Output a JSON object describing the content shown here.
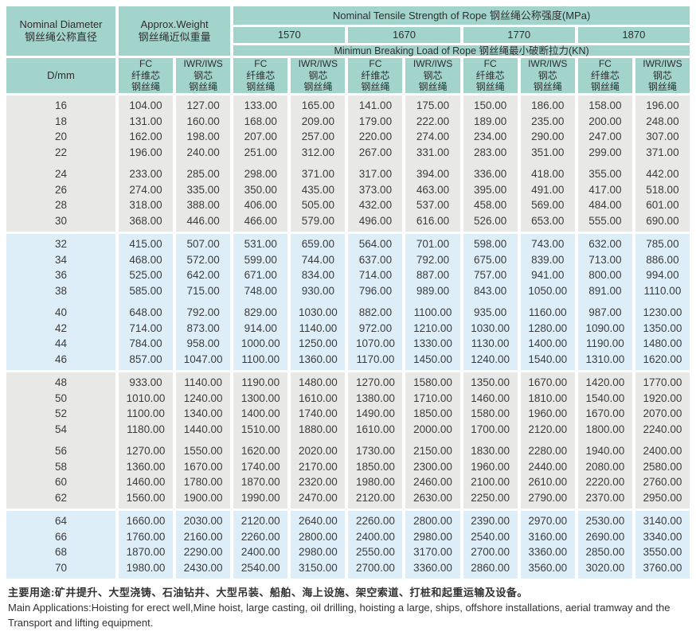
{
  "header": {
    "diameter_label": "Nominal Diameter\n钢丝绳公称直径",
    "weight_label": "Approx.Weight\n钢丝绳近似重量",
    "tensile_title": "Nominal Tensile Strength of Rope  钢丝绳公称强度(MPa)",
    "strengths": [
      "1570",
      "1670",
      "1770",
      "1870"
    ],
    "breaking_title": "Minimun Breaking Load of Rope  钢丝绳最小破断拉力(KN)",
    "d_mm": "D/mm",
    "fc_label": "FC\n纤维芯\n钢丝绳",
    "iwr_label": "IWR/IWS\n钢芯\n钢丝绳"
  },
  "colors": {
    "header_bg": "#a3d4cb",
    "band_gray": "#e8e8e7",
    "band_blue": "#ddeef8",
    "text": "#3a3a3a"
  },
  "table": {
    "bands": [
      {
        "bg": "gray",
        "groups": [
          [
            {
              "d": "16",
              "v": [
                "104.00",
                "127.00",
                "133.00",
                "165.00",
                "141.00",
                "175.00",
                "150.00",
                "186.00",
                "158.00",
                "196.00"
              ]
            },
            {
              "d": "18",
              "v": [
                "131.00",
                "160.00",
                "168.00",
                "209.00",
                "179.00",
                "222.00",
                "189.00",
                "235.00",
                "200.00",
                "248.00"
              ]
            },
            {
              "d": "20",
              "v": [
                "162.00",
                "198.00",
                "207.00",
                "257.00",
                "220.00",
                "274.00",
                "234.00",
                "290.00",
                "247.00",
                "307.00"
              ]
            },
            {
              "d": "22",
              "v": [
                "196.00",
                "240.00",
                "251.00",
                "312.00",
                "267.00",
                "331.00",
                "283.00",
                "351.00",
                "299.00",
                "371.00"
              ]
            }
          ],
          [
            {
              "d": "24",
              "v": [
                "233.00",
                "285.00",
                "298.00",
                "371.00",
                "317.00",
                "394.00",
                "336.00",
                "418.00",
                "355.00",
                "442.00"
              ]
            },
            {
              "d": "26",
              "v": [
                "274.00",
                "335.00",
                "350.00",
                "435.00",
                "373.00",
                "463.00",
                "395.00",
                "491.00",
                "417.00",
                "518.00"
              ]
            },
            {
              "d": "28",
              "v": [
                "318.00",
                "388.00",
                "406.00",
                "505.00",
                "432.00",
                "537.00",
                "458.00",
                "569.00",
                "484.00",
                "601.00"
              ]
            },
            {
              "d": "30",
              "v": [
                "368.00",
                "446.00",
                "466.00",
                "579.00",
                "496.00",
                "616.00",
                "526.00",
                "653.00",
                "555.00",
                "690.00"
              ]
            }
          ]
        ]
      },
      {
        "bg": "blue",
        "groups": [
          [
            {
              "d": "32",
              "v": [
                "415.00",
                "507.00",
                "531.00",
                "659.00",
                "564.00",
                "701.00",
                "598.00",
                "743.00",
                "632.00",
                "785.00"
              ]
            },
            {
              "d": "34",
              "v": [
                "468.00",
                "572.00",
                "599.00",
                "744.00",
                "637.00",
                "792.00",
                "675.00",
                "839.00",
                "713.00",
                "886.00"
              ]
            },
            {
              "d": "36",
              "v": [
                "525.00",
                "642.00",
                "671.00",
                "834.00",
                "714.00",
                "887.00",
                "757.00",
                "941.00",
                "800.00",
                "994.00"
              ]
            },
            {
              "d": "38",
              "v": [
                "585.00",
                "715.00",
                "748.00",
                "930.00",
                "796.00",
                "989.00",
                "843.00",
                "1050.00",
                "891.00",
                "1110.00"
              ]
            }
          ],
          [
            {
              "d": "40",
              "v": [
                "648.00",
                "792.00",
                "829.00",
                "1030.00",
                "882.00",
                "1100.00",
                "935.00",
                "1160.00",
                "987.00",
                "1230.00"
              ]
            },
            {
              "d": "42",
              "v": [
                "714.00",
                "873.00",
                "914.00",
                "1140.00",
                "972.00",
                "1210.00",
                "1030.00",
                "1280.00",
                "1090.00",
                "1350.00"
              ]
            },
            {
              "d": "44",
              "v": [
                "784.00",
                "958.00",
                "1000.00",
                "1250.00",
                "1070.00",
                "1330.00",
                "1130.00",
                "1400.00",
                "1190.00",
                "1480.00"
              ]
            },
            {
              "d": "46",
              "v": [
                "857.00",
                "1047.00",
                "1100.00",
                "1360.00",
                "1170.00",
                "1450.00",
                "1240.00",
                "1540.00",
                "1310.00",
                "1620.00"
              ]
            }
          ]
        ]
      },
      {
        "bg": "gray",
        "groups": [
          [
            {
              "d": "48",
              "v": [
                "933.00",
                "1140.00",
                "1190.00",
                "1480.00",
                "1270.00",
                "1580.00",
                "1350.00",
                "1670.00",
                "1420.00",
                "1770.00"
              ]
            },
            {
              "d": "50",
              "v": [
                "1010.00",
                "1240.00",
                "1300.00",
                "1610.00",
                "1380.00",
                "1710.00",
                "1460.00",
                "1810.00",
                "1540.00",
                "1920.00"
              ]
            },
            {
              "d": "52",
              "v": [
                "1100.00",
                "1340.00",
                "1400.00",
                "1740.00",
                "1490.00",
                "1850.00",
                "1580.00",
                "1960.00",
                "1670.00",
                "2070.00"
              ]
            },
            {
              "d": "54",
              "v": [
                "1180.00",
                "1440.00",
                "1510.00",
                "1880.00",
                "1610.00",
                "2000.00",
                "1700.00",
                "2120.00",
                "1800.00",
                "2240.00"
              ]
            }
          ],
          [
            {
              "d": "56",
              "v": [
                "1270.00",
                "1550.00",
                "1620.00",
                "2020.00",
                "1730.00",
                "2150.00",
                "1830.00",
                "2280.00",
                "1940.00",
                "2400.00"
              ]
            },
            {
              "d": "58",
              "v": [
                "1360.00",
                "1670.00",
                "1740.00",
                "2170.00",
                "1850.00",
                "2300.00",
                "1960.00",
                "2440.00",
                "2080.00",
                "2580.00"
              ]
            },
            {
              "d": "60",
              "v": [
                "1460.00",
                "1780.00",
                "1870.00",
                "2320.00",
                "1980.00",
                "2460.00",
                "2100.00",
                "2610.00",
                "2220.00",
                "2760.00"
              ]
            },
            {
              "d": "62",
              "v": [
                "1560.00",
                "1900.00",
                "1990.00",
                "2470.00",
                "2120.00",
                "2630.00",
                "2250.00",
                "2790.00",
                "2370.00",
                "2950.00"
              ]
            }
          ]
        ]
      },
      {
        "bg": "blue",
        "groups": [
          [
            {
              "d": "64",
              "v": [
                "1660.00",
                "2030.00",
                "2120.00",
                "2640.00",
                "2260.00",
                "2800.00",
                "2390.00",
                "2970.00",
                "2530.00",
                "3140.00"
              ]
            },
            {
              "d": "66",
              "v": [
                "1760.00",
                "2160.00",
                "2260.00",
                "2800.00",
                "2400.00",
                "2980.00",
                "2540.00",
                "3160.00",
                "2690.00",
                "3340.00"
              ]
            },
            {
              "d": "68",
              "v": [
                "1870.00",
                "2290.00",
                "2400.00",
                "2980.00",
                "2550.00",
                "3170.00",
                "2700.00",
                "3360.00",
                "2850.00",
                "3550.00"
              ]
            },
            {
              "d": "70",
              "v": [
                "1980.00",
                "2430.00",
                "2540.00",
                "3150.00",
                "2700.00",
                "3360.00",
                "2860.00",
                "3560.00",
                "3020.00",
                "3760.00"
              ]
            }
          ]
        ]
      }
    ]
  },
  "footer": {
    "line_cn": "主要用途:矿井提升、大型浇铸、石油钻井、大型吊装、船舶、海上设施、架空索道、打桩和起重运输及设备。",
    "line_en": "Main Applications:Hoisting for erect well,Mine hoist, large casting, oil drilling, hoisting a large, ships, offshore installations, aerial tramway and the Transport and lifting equipment."
  }
}
